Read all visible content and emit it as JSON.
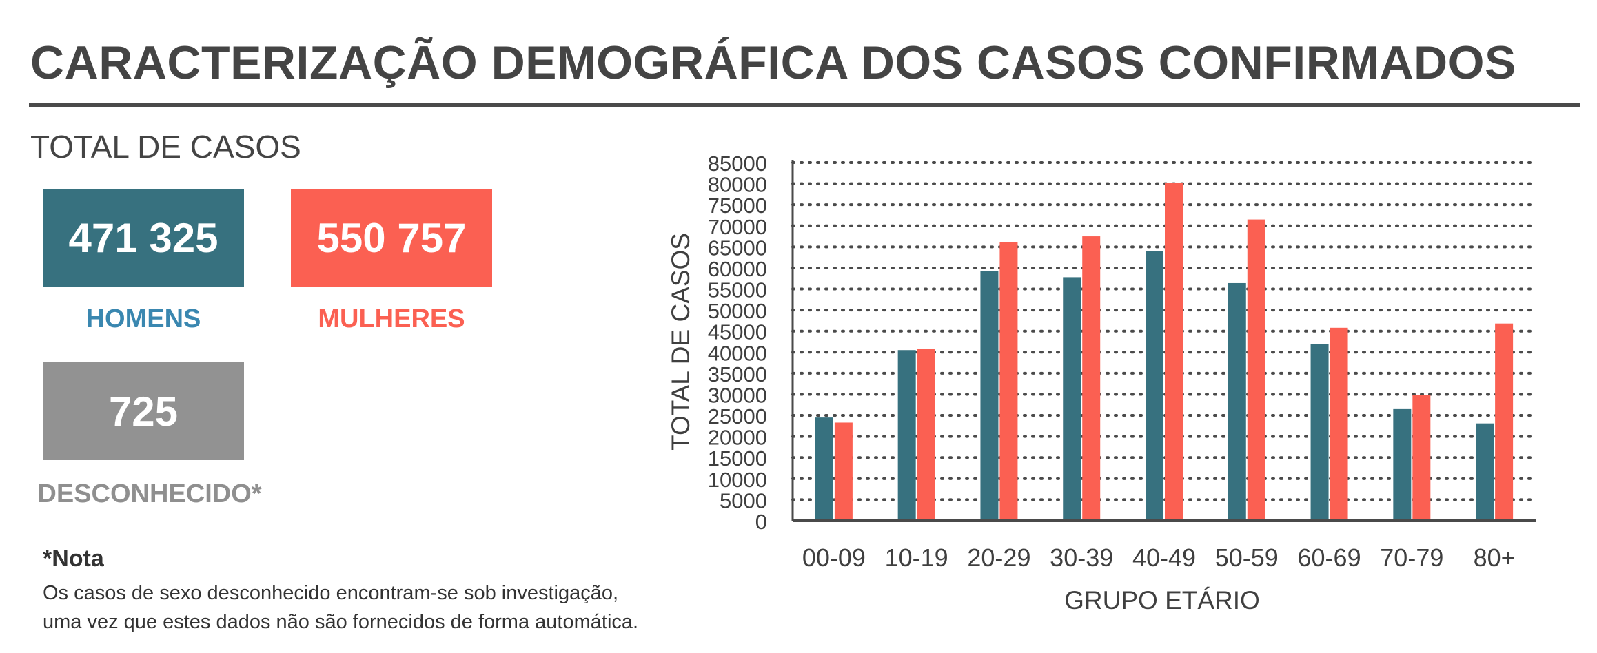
{
  "header": {
    "title": "CARACTERIZAÇÃO DEMOGRÁFICA DOS CASOS CONFIRMADOS"
  },
  "summary": {
    "section_title": "TOTAL DE CASOS",
    "men": {
      "value": "471 325",
      "label": "HOMENS",
      "box_color": "#37717f",
      "label_color": "#3a87b0"
    },
    "women": {
      "value": "550 757",
      "label": "MULHERES",
      "box_color": "#fb6052",
      "label_color": "#fb6052"
    },
    "unknown": {
      "value": "725",
      "label": "DESCONHECIDO*",
      "box_color": "#929292",
      "label_color": "#8f8f8f"
    }
  },
  "note": {
    "title": "*Nota",
    "lines": [
      "Os casos de sexo desconhecido encontram-se sob investigação,",
      "uma vez que estes dados não são fornecidos de forma automática."
    ]
  },
  "chart_data": {
    "type": "bar",
    "xlabel": "GRUPO ETÁRIO",
    "ylabel": "TOTAL DE CASOS",
    "categories": [
      "00-09",
      "10-19",
      "20-29",
      "30-39",
      "40-49",
      "50-59",
      "60-69",
      "70-79",
      "80+"
    ],
    "series": [
      {
        "color": "#37717f",
        "values": [
          24500,
          40500,
          59300,
          57800,
          64000,
          56400,
          42000,
          26500,
          23100
        ]
      },
      {
        "color": "#fb6052",
        "values": [
          23300,
          40800,
          66100,
          67500,
          80200,
          71500,
          45800,
          29800,
          46800
        ]
      }
    ],
    "ylim": [
      0,
      85000
    ],
    "yticks": [
      0,
      5000,
      10000,
      15000,
      20000,
      25000,
      30000,
      35000,
      40000,
      45000,
      50000,
      55000,
      60000,
      65000,
      70000,
      75000,
      80000,
      85000
    ],
    "grid": true,
    "legend": "none"
  }
}
